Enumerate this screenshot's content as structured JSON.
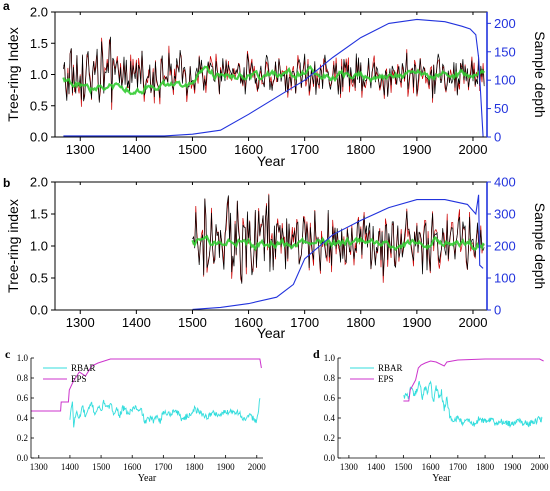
{
  "chart_data": [
    {
      "panel_label": "a",
      "type": "line",
      "title": "",
      "xlabel": "Year",
      "ylabel": "Tree-ring Index",
      "y2label": "Sample depth",
      "xlim": [
        1255,
        2025
      ],
      "ylim": [
        0,
        2.0
      ],
      "y2lim": [
        0,
        220
      ],
      "xticks": [
        1300,
        1400,
        1500,
        1600,
        1700,
        1800,
        1900,
        2000
      ],
      "yticks": [
        "0.0",
        "0.5",
        "1.0",
        "1.5",
        "2.0"
      ],
      "y2ticks": [
        0,
        50,
        100,
        150,
        200
      ],
      "colors": {
        "index": "#000000",
        "red": "#cc0000",
        "green": "#33cc33",
        "depth": "#2233dd"
      },
      "index_range": [
        1270,
        2020
      ],
      "index_mean": 1.0,
      "index_amplitude": 0.28,
      "green_start": 1270,
      "depth": {
        "x": [
          1270,
          1300,
          1400,
          1450,
          1500,
          1550,
          1600,
          1650,
          1700,
          1750,
          1800,
          1850,
          1900,
          1950,
          1980,
          1995,
          2005,
          2010,
          2018
        ],
        "y": [
          2,
          2,
          2,
          2,
          5,
          12,
          40,
          70,
          100,
          140,
          175,
          200,
          207,
          203,
          195,
          190,
          180,
          140,
          0
        ]
      }
    },
    {
      "panel_label": "b",
      "type": "line",
      "title": "",
      "xlabel": "Year",
      "ylabel": "Tree-ring index",
      "y2label": "Sample depth",
      "xlim": [
        1255,
        2025
      ],
      "ylim": [
        0,
        2.0
      ],
      "y2lim": [
        0,
        400
      ],
      "xticks": [
        1300,
        1400,
        1500,
        1600,
        1700,
        1800,
        1900,
        2000
      ],
      "yticks": [
        "0.0",
        "0.5",
        "1.0",
        "1.5",
        "2.0"
      ],
      "y2ticks": [
        0,
        100,
        200,
        300,
        400
      ],
      "colors": {
        "index": "#000000",
        "red": "#cc0000",
        "green": "#33cc33",
        "depth": "#2233dd"
      },
      "index_range": [
        1500,
        2020
      ],
      "index_mean": 1.05,
      "index_amplitude": 0.38,
      "green_start": 1500,
      "depth": {
        "x": [
          1500,
          1550,
          1600,
          1650,
          1680,
          1700,
          1750,
          1800,
          1850,
          1900,
          1950,
          1990,
          2005,
          2010,
          2012,
          2018
        ],
        "y": [
          2,
          8,
          20,
          40,
          80,
          160,
          235,
          280,
          320,
          345,
          345,
          330,
          300,
          360,
          140,
          130
        ]
      }
    },
    {
      "panel_label": "c",
      "type": "line",
      "title": "",
      "xlabel": "Year",
      "ylabel": "",
      "xlim": [
        1275,
        2020
      ],
      "ylim": [
        0,
        1.0
      ],
      "xticks": [
        1300,
        1400,
        1500,
        1600,
        1700,
        1800,
        1900,
        2000
      ],
      "yticks": [
        "0.0",
        "0.2",
        "0.4",
        "0.6",
        "0.8",
        "1.0"
      ],
      "legend": [
        "RBAR",
        "EPS"
      ],
      "colors": {
        "rbar": "#33dddd",
        "eps": "#cc33cc"
      },
      "eps": {
        "x": [
          1275,
          1370,
          1372,
          1395,
          1398,
          1410,
          1430,
          1450,
          1470,
          1490,
          1510,
          1530,
          2010,
          2015
        ],
        "y": [
          0.47,
          0.47,
          0.56,
          0.56,
          0.68,
          0.76,
          0.86,
          0.82,
          0.92,
          0.95,
          0.97,
          0.99,
          0.99,
          0.9
        ]
      },
      "rbar": {
        "x": [
          1400,
          1408,
          1412,
          1420,
          1430,
          1440,
          1450,
          1460,
          1470,
          1480,
          1490,
          1500,
          1510,
          1520,
          1530,
          1540,
          1550,
          1560,
          1570,
          1580,
          1590,
          1600,
          1610,
          1620,
          1630,
          1640,
          1650,
          1660,
          1670,
          1680,
          1690,
          1700,
          1720,
          1740,
          1760,
          1780,
          1800,
          1820,
          1840,
          1860,
          1880,
          1900,
          1920,
          1940,
          1960,
          1980,
          2000,
          2010
        ],
        "y": [
          0.38,
          0.58,
          0.32,
          0.46,
          0.39,
          0.52,
          0.41,
          0.48,
          0.55,
          0.44,
          0.51,
          0.47,
          0.57,
          0.49,
          0.53,
          0.46,
          0.49,
          0.43,
          0.5,
          0.47,
          0.44,
          0.49,
          0.51,
          0.46,
          0.48,
          0.36,
          0.38,
          0.4,
          0.36,
          0.44,
          0.37,
          0.46,
          0.44,
          0.48,
          0.39,
          0.42,
          0.49,
          0.45,
          0.41,
          0.45,
          0.43,
          0.46,
          0.47,
          0.46,
          0.38,
          0.42,
          0.37,
          0.58
        ]
      }
    },
    {
      "panel_label": "d",
      "type": "line",
      "title": "",
      "xlabel": "Year",
      "ylabel": "",
      "xlim": [
        1260,
        2020
      ],
      "ylim": [
        0,
        1.0
      ],
      "xticks": [
        1300,
        1400,
        1500,
        1600,
        1700,
        1800,
        1900,
        2000
      ],
      "yticks": [
        "0.0",
        "0.2",
        "0.4",
        "0.6",
        "0.8",
        "1.0"
      ],
      "legend": [
        "RBAR",
        "EPS"
      ],
      "colors": {
        "rbar": "#33dddd",
        "eps": "#cc33cc"
      },
      "eps": {
        "x": [
          1500,
          1520,
          1525,
          1545,
          1555,
          1565,
          1580,
          1600,
          1620,
          1650,
          1660,
          1700,
          1800,
          2000,
          2015
        ],
        "y": [
          0.57,
          0.57,
          0.68,
          0.78,
          0.9,
          0.93,
          0.95,
          0.97,
          0.96,
          0.92,
          0.96,
          0.98,
          0.99,
          0.99,
          0.97
        ]
      },
      "rbar": {
        "x": [
          1500,
          1520,
          1530,
          1540,
          1550,
          1560,
          1570,
          1580,
          1590,
          1600,
          1610,
          1620,
          1630,
          1640,
          1650,
          1660,
          1670,
          1680,
          1700,
          1720,
          1740,
          1760,
          1780,
          1800,
          1820,
          1840,
          1860,
          1880,
          1900,
          1920,
          1940,
          1960,
          1980,
          2000,
          2010
        ],
        "y": [
          0.62,
          0.62,
          0.72,
          0.62,
          0.68,
          0.76,
          0.6,
          0.7,
          0.66,
          0.76,
          0.55,
          0.7,
          0.62,
          0.66,
          0.48,
          0.6,
          0.42,
          0.36,
          0.4,
          0.35,
          0.38,
          0.33,
          0.4,
          0.36,
          0.39,
          0.34,
          0.37,
          0.35,
          0.34,
          0.37,
          0.35,
          0.34,
          0.36,
          0.39,
          0.38
        ]
      }
    }
  ]
}
